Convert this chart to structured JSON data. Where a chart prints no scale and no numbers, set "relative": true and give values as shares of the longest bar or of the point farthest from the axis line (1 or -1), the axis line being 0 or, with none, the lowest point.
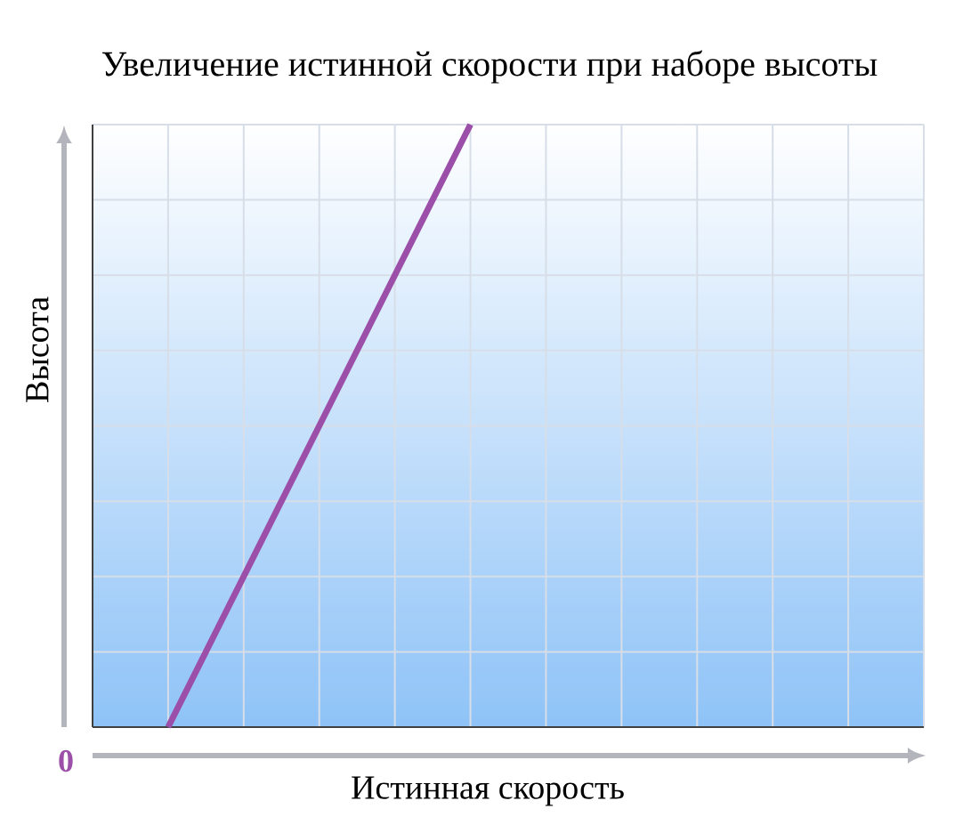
{
  "chart_data": {
    "type": "line",
    "title": "Увеличение истинной скорости при наборе высоты",
    "xlabel": "Истинная скорость",
    "ylabel": "Высота",
    "relative": true,
    "categories": [
      null,
      null,
      null,
      null,
      null,
      null,
      null,
      null,
      null,
      null,
      null,
      null
    ],
    "series": [
      {
        "color": "#9b4fa8",
        "values": [
          null,
          0,
          0.25,
          0.5,
          0.75,
          1,
          null,
          null,
          null,
          null,
          null,
          null
        ]
      }
    ],
    "annotations": [
      "0"
    ],
    "grid": true
  }
}
